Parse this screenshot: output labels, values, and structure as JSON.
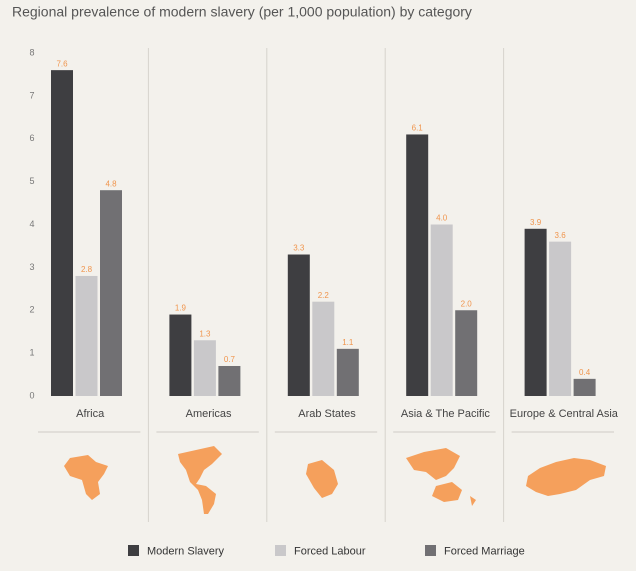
{
  "chart_data": {
    "type": "bar",
    "title": "Regional prevalence of modern slavery (per 1,000 population) by category",
    "categories": [
      "Africa",
      "Americas",
      "Arab States",
      "Asia & The Pacific",
      "Europe & Central Asia"
    ],
    "series": [
      {
        "name": "Modern Slavery",
        "color": "#3e3e41",
        "values": [
          7.6,
          1.9,
          3.3,
          6.1,
          3.9
        ],
        "value_labels": [
          "7.6",
          "1.9",
          "3.3",
          "6.1",
          "3.9"
        ]
      },
      {
        "name": "Forced Labour",
        "color": "#c9c8ca",
        "values": [
          2.8,
          1.3,
          2.2,
          4.0,
          3.6
        ],
        "value_labels": [
          "2.8",
          "1.3",
          "2.2",
          "4.0",
          "3.6"
        ]
      },
      {
        "name": "Forced Marriage",
        "color": "#717073",
        "values": [
          4.8,
          0.7,
          1.1,
          2.0,
          0.4
        ],
        "value_labels": [
          "4.8",
          "0.7",
          "1.1",
          "2.0",
          "0.4"
        ]
      }
    ],
    "ylim": [
      0,
      8
    ],
    "yticks": [
      0,
      1,
      2,
      3,
      4,
      5,
      6,
      7,
      8
    ],
    "label_color": "#f0954d"
  }
}
